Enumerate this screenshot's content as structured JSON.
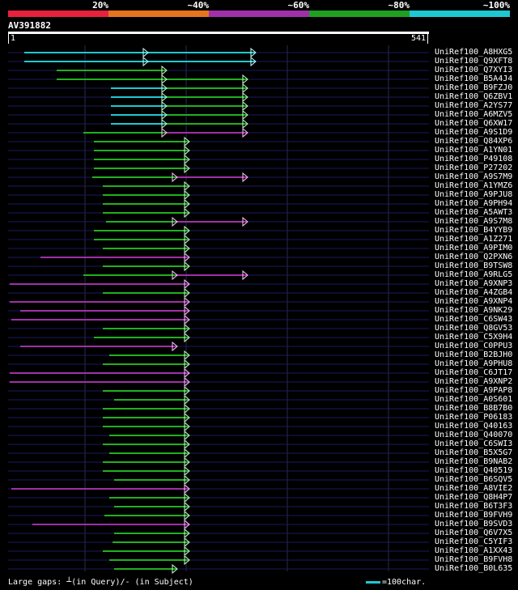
{
  "scale": {
    "labels": [
      "20%",
      "~40%",
      "~60%",
      "~80%",
      "~100%"
    ],
    "colors": [
      "#e8213c",
      "#e57420",
      "#a030a8",
      "#20a020",
      "#1ec8d2"
    ]
  },
  "query": {
    "name": "AV391882",
    "start": "1",
    "end": "541",
    "length": 541
  },
  "colors": {
    "line_green": "#20b020",
    "line_magenta": "#a030a8",
    "line_cyan": "#1ec8d2",
    "grid": "#2a2a50",
    "row_line": "#1a1a60"
  },
  "hits": [
    {
      "name": "UniRef100_A8HXG5",
      "segs": [
        [
          20,
          305,
          "cyan"
        ]
      ],
      "marks": [
        172,
        305
      ],
      "gap": 35,
      "start_color": "cyan"
    },
    {
      "name": "UniRef100_Q9XFT8",
      "segs": [
        [
          20,
          305,
          "cyan"
        ]
      ],
      "marks": [
        172,
        305
      ],
      "gap": 35
    },
    {
      "name": "UniRef100_Q7XYI3",
      "segs": [
        [
          60,
          165,
          "green"
        ],
        [
          165,
          195,
          "green"
        ]
      ],
      "marks": [
        195
      ]
    },
    {
      "name": "UniRef100_B5A4J4",
      "segs": [
        [
          60,
          295,
          "green"
        ]
      ],
      "marks": [
        195,
        295
      ]
    },
    {
      "name": "UniRef100_B9FZJ0",
      "segs": [
        [
          127,
          195,
          "cyan"
        ],
        [
          195,
          295,
          "green"
        ]
      ],
      "marks": [
        195,
        295
      ]
    },
    {
      "name": "UniRef100_Q6ZBV1",
      "segs": [
        [
          127,
          195,
          "cyan"
        ],
        [
          195,
          295,
          "green"
        ]
      ],
      "marks": [
        195,
        295
      ]
    },
    {
      "name": "UniRef100_A2YS77",
      "segs": [
        [
          127,
          195,
          "cyan"
        ],
        [
          195,
          295,
          "green"
        ]
      ],
      "marks": [
        195,
        295
      ]
    },
    {
      "name": "UniRef100_A6MZV5",
      "segs": [
        [
          127,
          195,
          "cyan"
        ],
        [
          195,
          295,
          "green"
        ]
      ],
      "marks": [
        195,
        295
      ]
    },
    {
      "name": "UniRef100_Q6XW17",
      "segs": [
        [
          127,
          195,
          "cyan"
        ],
        [
          195,
          295,
          "green"
        ]
      ],
      "marks": [
        195,
        295
      ]
    },
    {
      "name": "UniRef100_A9S1D9",
      "segs": [
        [
          93,
          195,
          "green"
        ],
        [
          195,
          295,
          "magenta"
        ]
      ],
      "marks": [
        195,
        295
      ]
    },
    {
      "name": "UniRef100_Q84XP6",
      "segs": [
        [
          106,
          223,
          "green"
        ]
      ],
      "marks": [
        223
      ]
    },
    {
      "name": "UniRef100_A1YN01",
      "segs": [
        [
          106,
          223,
          "green"
        ]
      ],
      "marks": [
        223
      ]
    },
    {
      "name": "UniRef100_P49108",
      "segs": [
        [
          106,
          223,
          "green"
        ]
      ],
      "marks": [
        223
      ]
    },
    {
      "name": "UniRef100_P27202",
      "segs": [
        [
          106,
          223,
          "green"
        ]
      ],
      "marks": [
        223
      ]
    },
    {
      "name": "UniRef100_A9S7M9",
      "segs": [
        [
          104,
          208,
          "green"
        ],
        [
          208,
          295,
          "magenta"
        ]
      ],
      "marks": [
        208,
        295
      ]
    },
    {
      "name": "UniRef100_A1YMZ6",
      "segs": [
        [
          117,
          223,
          "green"
        ]
      ],
      "marks": [
        223
      ]
    },
    {
      "name": "UniRef100_A9PJU8",
      "segs": [
        [
          117,
          223,
          "green"
        ]
      ],
      "marks": [
        223
      ]
    },
    {
      "name": "UniRef100_A9PH94",
      "segs": [
        [
          117,
          223,
          "green"
        ]
      ],
      "marks": [
        223
      ]
    },
    {
      "name": "UniRef100_A5AWT3",
      "segs": [
        [
          117,
          223,
          "green"
        ]
      ],
      "marks": [
        223
      ]
    },
    {
      "name": "UniRef100_A9S7M8",
      "segs": [
        [
          121,
          208,
          "green"
        ],
        [
          208,
          295,
          "magenta"
        ]
      ],
      "marks": [
        208,
        295
      ]
    },
    {
      "name": "UniRef100_B4YYB9",
      "segs": [
        [
          106,
          223,
          "green"
        ]
      ],
      "marks": [
        223
      ]
    },
    {
      "name": "UniRef100_A1Z271",
      "segs": [
        [
          106,
          223,
          "green"
        ]
      ],
      "marks": [
        223
      ]
    },
    {
      "name": "UniRef100_A9PIM0",
      "segs": [
        [
          117,
          223,
          "green"
        ]
      ],
      "marks": [
        223
      ]
    },
    {
      "name": "UniRef100_Q2PXN6",
      "segs": [
        [
          40,
          223,
          "magenta"
        ]
      ],
      "marks": [
        223
      ]
    },
    {
      "name": "UniRef100_B9TSW8",
      "segs": [
        [
          117,
          223,
          "green"
        ]
      ],
      "marks": [
        223
      ]
    },
    {
      "name": "UniRef100_A9RLG5",
      "segs": [
        [
          93,
          208,
          "green"
        ],
        [
          208,
          295,
          "magenta"
        ]
      ],
      "marks": [
        208,
        295
      ]
    },
    {
      "name": "UniRef100_A9XNP3",
      "segs": [
        [
          2,
          223,
          "magenta"
        ]
      ],
      "marks": [
        223
      ]
    },
    {
      "name": "UniRef100_A4ZGB4",
      "segs": [
        [
          117,
          223,
          "green"
        ]
      ],
      "marks": [
        223
      ]
    },
    {
      "name": "UniRef100_A9XNP4",
      "segs": [
        [
          2,
          223,
          "magenta"
        ]
      ],
      "marks": [
        223
      ]
    },
    {
      "name": "UniRef100_A9NK29",
      "segs": [
        [
          15,
          223,
          "magenta"
        ]
      ],
      "marks": [
        223
      ]
    },
    {
      "name": "UniRef100_C6SW43",
      "segs": [
        [
          4,
          223,
          "magenta"
        ]
      ],
      "marks": [
        223
      ]
    },
    {
      "name": "UniRef100_Q8GV53",
      "segs": [
        [
          117,
          223,
          "green"
        ]
      ],
      "marks": [
        223
      ]
    },
    {
      "name": "UniRef100_C5X9H4",
      "segs": [
        [
          106,
          223,
          "green"
        ]
      ],
      "marks": [
        223
      ]
    },
    {
      "name": "UniRef100_C0PPU3",
      "segs": [
        [
          15,
          208,
          "magenta"
        ]
      ],
      "marks": [
        208
      ]
    },
    {
      "name": "UniRef100_B2BJH0",
      "segs": [
        [
          125,
          223,
          "green"
        ]
      ],
      "marks": [
        223
      ]
    },
    {
      "name": "UniRef100_A9PHU8",
      "segs": [
        [
          117,
          223,
          "green"
        ]
      ],
      "marks": [
        223
      ]
    },
    {
      "name": "UniRef100_C6JT17",
      "segs": [
        [
          2,
          223,
          "magenta"
        ]
      ],
      "marks": [
        223
      ]
    },
    {
      "name": "UniRef100_A9XNP2",
      "segs": [
        [
          2,
          223,
          "magenta"
        ]
      ],
      "marks": [
        223
      ]
    },
    {
      "name": "UniRef100_A9PAP8",
      "segs": [
        [
          117,
          223,
          "green"
        ]
      ],
      "marks": [
        223
      ]
    },
    {
      "name": "UniRef100_A0S601",
      "segs": [
        [
          131,
          223,
          "green"
        ]
      ],
      "marks": [
        223
      ]
    },
    {
      "name": "UniRef100_B8B7B0",
      "segs": [
        [
          117,
          223,
          "green"
        ]
      ],
      "marks": [
        223
      ]
    },
    {
      "name": "UniRef100_P06183",
      "segs": [
        [
          117,
          223,
          "green"
        ]
      ],
      "marks": [
        223
      ]
    },
    {
      "name": "UniRef100_Q40163",
      "segs": [
        [
          117,
          223,
          "green"
        ]
      ],
      "marks": [
        223
      ]
    },
    {
      "name": "UniRef100_Q40070",
      "segs": [
        [
          125,
          223,
          "green"
        ]
      ],
      "marks": [
        223
      ]
    },
    {
      "name": "UniRef100_C6SWI3",
      "segs": [
        [
          117,
          223,
          "green"
        ]
      ],
      "marks": [
        223
      ]
    },
    {
      "name": "UniRef100_B5X5G7",
      "segs": [
        [
          125,
          223,
          "green"
        ]
      ],
      "marks": [
        223
      ]
    },
    {
      "name": "UniRef100_B9NAB2",
      "segs": [
        [
          117,
          223,
          "green"
        ]
      ],
      "marks": [
        223
      ]
    },
    {
      "name": "UniRef100_Q40519",
      "segs": [
        [
          117,
          223,
          "green"
        ]
      ],
      "marks": [
        223
      ]
    },
    {
      "name": "UniRef100_B6SQV5",
      "segs": [
        [
          131,
          223,
          "green"
        ]
      ],
      "marks": [
        223
      ]
    },
    {
      "name": "UniRef100_A8VIE2",
      "segs": [
        [
          4,
          223,
          "magenta"
        ]
      ],
      "marks": [
        223
      ]
    },
    {
      "name": "UniRef100_Q8H4P7",
      "segs": [
        [
          125,
          223,
          "green"
        ]
      ],
      "marks": [
        223
      ]
    },
    {
      "name": "UniRef100_B6T3F3",
      "segs": [
        [
          131,
          223,
          "green"
        ]
      ],
      "marks": [
        223
      ]
    },
    {
      "name": "UniRef100_B9FVH9",
      "segs": [
        [
          119,
          223,
          "green"
        ]
      ],
      "marks": [
        223
      ]
    },
    {
      "name": "UniRef100_B9SVD3",
      "segs": [
        [
          30,
          223,
          "magenta"
        ]
      ],
      "marks": [
        223
      ]
    },
    {
      "name": "UniRef100_Q6V7X5",
      "segs": [
        [
          131,
          223,
          "green"
        ]
      ],
      "marks": [
        223
      ]
    },
    {
      "name": "UniRef100_C5YIF3",
      "segs": [
        [
          129,
          223,
          "green"
        ]
      ],
      "marks": [
        223
      ]
    },
    {
      "name": "UniRef100_A1XX43",
      "segs": [
        [
          117,
          223,
          "green"
        ]
      ],
      "marks": [
        223
      ]
    },
    {
      "name": "UniRef100_B9FVH8",
      "segs": [
        [
          125,
          223,
          "green"
        ]
      ],
      "marks": [
        223
      ]
    },
    {
      "name": "UniRef100_B0L635",
      "segs": [
        [
          131,
          208,
          "green"
        ]
      ],
      "marks": [
        208
      ]
    }
  ],
  "legend": {
    "gaps_text": "Large gaps: ┴(in Query)/- (in Subject)",
    "scale_text": "=100char."
  }
}
